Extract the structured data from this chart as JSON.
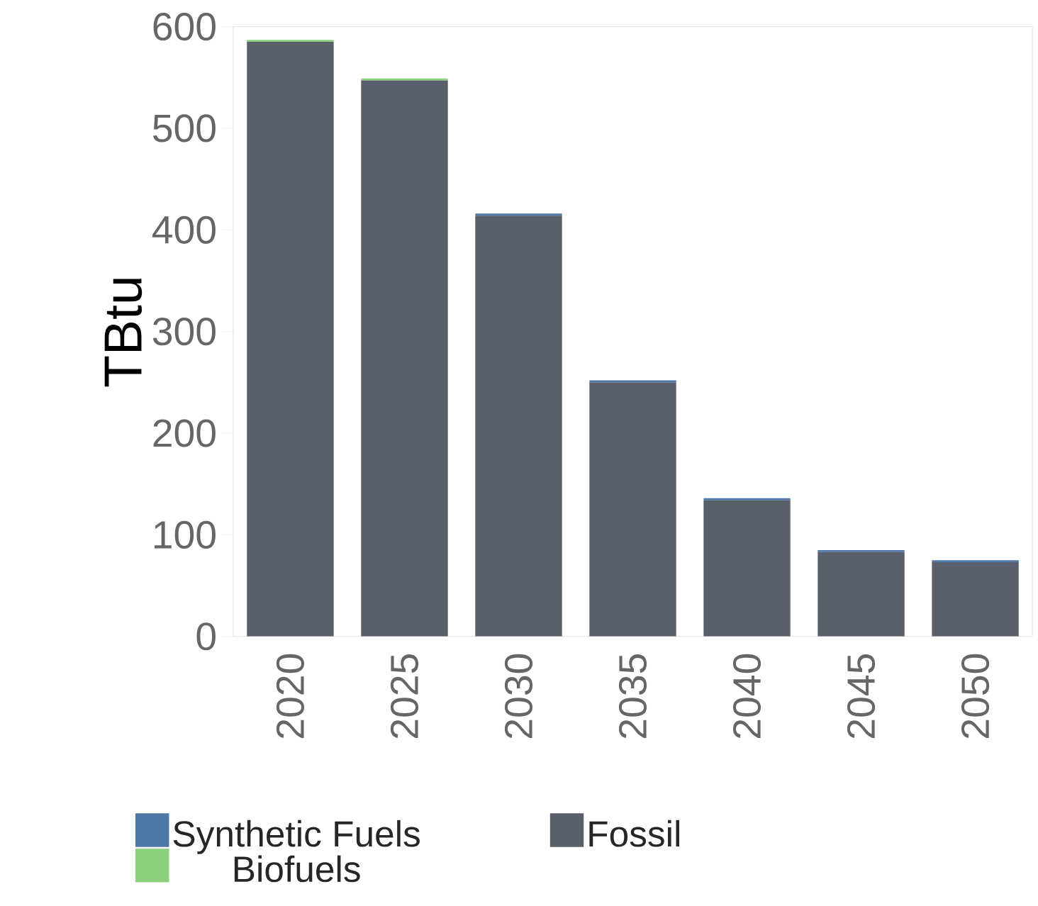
{
  "chart_data": {
    "type": "bar",
    "stacked": true,
    "ylabel": "TBtu",
    "categories": [
      "2020",
      "2025",
      "2030",
      "2035",
      "2040",
      "2045",
      "2050"
    ],
    "series": [
      {
        "name": "Fossil",
        "color": "#5a606b",
        "values": [
          585,
          547,
          414,
          250,
          134,
          83,
          73
        ]
      },
      {
        "name": "Biofuels",
        "color": "#8ccf7e",
        "values": [
          2,
          2,
          0,
          0,
          0,
          0,
          0
        ]
      },
      {
        "name": "Synthetic Fuels",
        "color": "#4e79a7",
        "values": [
          0,
          0,
          2,
          2,
          2,
          2,
          2
        ]
      }
    ],
    "ylim": [
      0,
      600
    ],
    "yticks": [
      0,
      100,
      200,
      300,
      400,
      500,
      600
    ],
    "grid": false,
    "legend": "bottom"
  }
}
